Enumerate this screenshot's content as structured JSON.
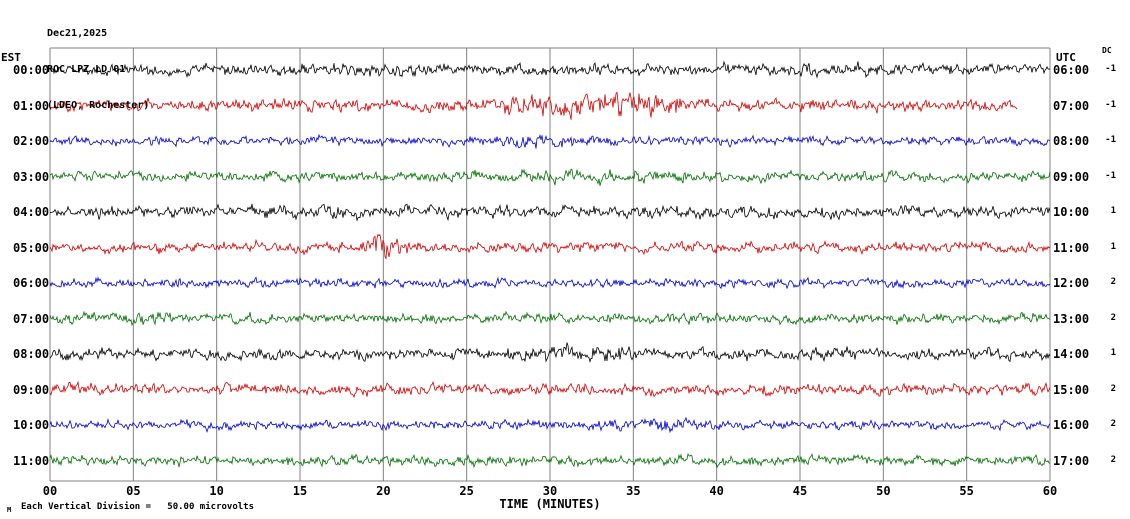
{
  "header": {
    "date": "Dec21,2025",
    "station": "ROC LPZ LD 01",
    "location": "(LDEO, Rochester)"
  },
  "axes": {
    "left_label": "EST",
    "right_label": "UTC",
    "dc_label": "DC",
    "x_title": "TIME (MINUTES)",
    "scale_note_prefix": "M",
    "scale_note": "Each Vertical Division =   50.00 microvolts"
  },
  "colors": {
    "black": "#000000",
    "red": "#d40000",
    "blue": "#0000d4",
    "green": "#007000",
    "grid": "#808080"
  },
  "chart_data": {
    "type": "line",
    "title": "ROC LPZ LD 01 helicorder record, Dec21,2025 (LDEO, Rochester)",
    "xlabel": "TIME (MINUTES)",
    "x_range_minutes": [
      0,
      60
    ],
    "x_ticks": [
      "00",
      "05",
      "10",
      "15",
      "20",
      "25",
      "30",
      "35",
      "40",
      "45",
      "50",
      "55",
      "60"
    ],
    "grid": true,
    "vertical_division_microvolts": 50.0,
    "rows": [
      {
        "est": "00:00",
        "utc": "06:00",
        "dc": "-1",
        "color": "black",
        "amp": 3.2,
        "events": [
          {
            "min": 20,
            "width": 8,
            "amp": 0.25
          },
          {
            "min": 45,
            "width": 10,
            "amp": 0.3
          }
        ]
      },
      {
        "est": "01:00",
        "utc": "07:00",
        "dc": "-1",
        "color": "red",
        "amp": 3.8,
        "end_min": 58,
        "events": [
          {
            "min": 31,
            "width": 6,
            "amp": 0.9
          },
          {
            "min": 36,
            "width": 3,
            "amp": 0.6
          }
        ]
      },
      {
        "est": "02:00",
        "utc": "08:00",
        "dc": "-1",
        "color": "blue",
        "amp": 2.8,
        "events": [
          {
            "min": 30,
            "width": 4,
            "amp": 0.4
          }
        ]
      },
      {
        "est": "03:00",
        "utc": "09:00",
        "dc": "-1",
        "color": "green",
        "amp": 3.2,
        "events": [
          {
            "min": 33,
            "width": 5,
            "amp": 0.35
          }
        ]
      },
      {
        "est": "04:00",
        "utc": "10:00",
        "dc": "1",
        "color": "black",
        "amp": 3.6,
        "events": [
          {
            "min": 18,
            "width": 6,
            "amp": 0.25
          }
        ]
      },
      {
        "est": "05:00",
        "utc": "11:00",
        "dc": "1",
        "color": "red",
        "amp": 3.2,
        "events": [
          {
            "min": 19.6,
            "width": 0.5,
            "amp": 2.2
          },
          {
            "min": 20.6,
            "width": 1.4,
            "amp": 0.7
          }
        ]
      },
      {
        "est": "06:00",
        "utc": "12:00",
        "dc": "2",
        "color": "blue",
        "amp": 2.8,
        "events": []
      },
      {
        "est": "07:00",
        "utc": "13:00",
        "dc": "2",
        "color": "green",
        "amp": 3.2,
        "events": [
          {
            "min": 4,
            "width": 3,
            "amp": 0.3
          }
        ]
      },
      {
        "est": "08:00",
        "utc": "14:00",
        "dc": "1",
        "color": "black",
        "amp": 3.6,
        "events": [
          {
            "min": 32,
            "width": 4,
            "amp": 0.5
          }
        ]
      },
      {
        "est": "09:00",
        "utc": "15:00",
        "dc": "2",
        "color": "red",
        "amp": 3.6,
        "events": []
      },
      {
        "est": "10:00",
        "utc": "16:00",
        "dc": "2",
        "color": "blue",
        "amp": 2.8,
        "events": [
          {
            "min": 37,
            "width": 3,
            "amp": 0.6
          }
        ]
      },
      {
        "est": "11:00",
        "utc": "17:00",
        "dc": "2",
        "color": "green",
        "amp": 3.2,
        "events": []
      }
    ]
  }
}
